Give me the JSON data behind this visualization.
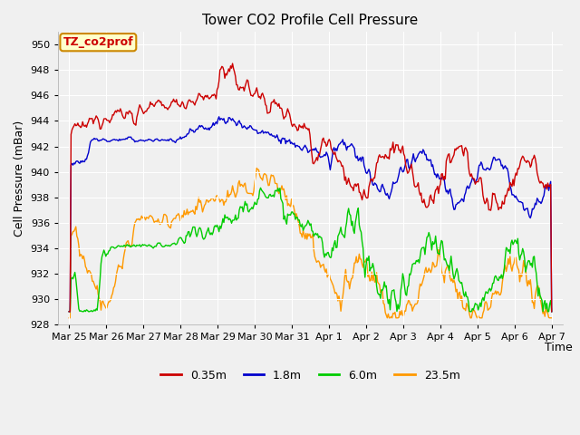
{
  "title": "Tower CO2 Profile Cell Pressure",
  "xlabel": "Time",
  "ylabel": "Cell Pressure (mBar)",
  "ylim": [
    928,
    951
  ],
  "fig_bg_color": "#f0f0f0",
  "plot_bg_color": "#f0f0f0",
  "grid_color": "#ffffff",
  "annotation_text": "TZ_co2prof",
  "annotation_bg": "#ffffcc",
  "annotation_border": "#cc8800",
  "annotation_text_color": "#cc0000",
  "legend_entries": [
    "0.35m",
    "1.8m",
    "6.0m",
    "23.5m"
  ],
  "line_colors": [
    "#cc0000",
    "#0000cc",
    "#00cc00",
    "#ff9900"
  ],
  "line_width": 1.0,
  "date_labels": [
    "Mar 25",
    "Mar 26",
    "Mar 27",
    "Mar 28",
    "Mar 29",
    "Mar 30",
    "Mar 31",
    "Apr 1",
    "Apr 2",
    "Apr 3",
    "Apr 4",
    "Apr 5",
    "Apr 6",
    "Apr 7"
  ],
  "n_points": 500
}
